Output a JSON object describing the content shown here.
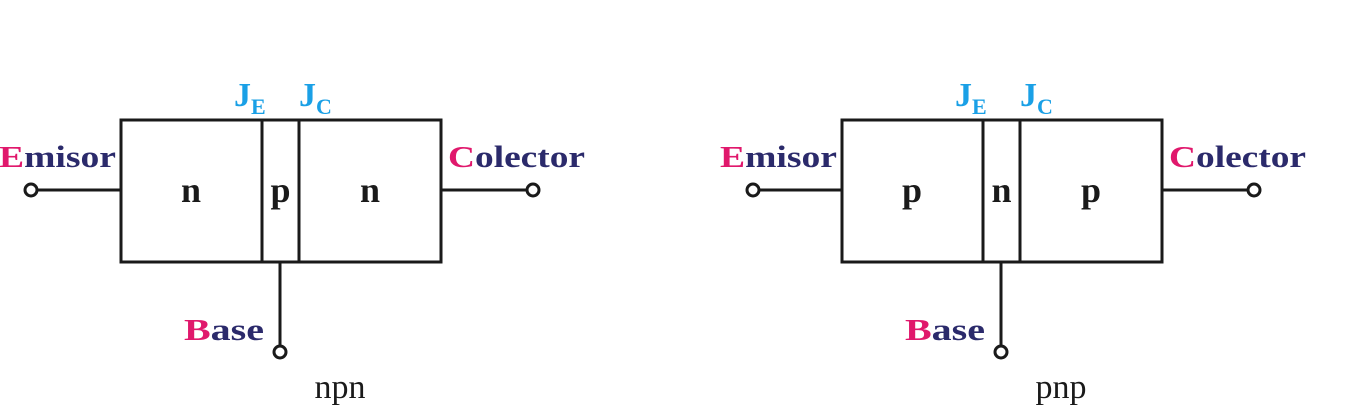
{
  "colors": {
    "first_letter": "#e0186c",
    "rest": "#2b2a6b",
    "junction": "#1aa0e6",
    "stroke": "#1a1a1a"
  },
  "diagrams": [
    {
      "caption": "npn",
      "regions": [
        "n",
        "p",
        "n"
      ],
      "emitter": {
        "first": "E",
        "rest": "misor"
      },
      "collector": {
        "first": "C",
        "rest": "olector"
      },
      "base": {
        "first": "B",
        "rest": "ase"
      },
      "je": {
        "main": "J",
        "sub": "E"
      },
      "jc": {
        "main": "J",
        "sub": "C"
      }
    },
    {
      "caption": "pnp",
      "regions": [
        "p",
        "n",
        "p"
      ],
      "emitter": {
        "first": "E",
        "rest": "misor"
      },
      "collector": {
        "first": "C",
        "rest": "olector"
      },
      "base": {
        "first": "B",
        "rest": "ase"
      },
      "je": {
        "main": "J",
        "sub": "E"
      },
      "jc": {
        "main": "J",
        "sub": "C"
      }
    }
  ]
}
